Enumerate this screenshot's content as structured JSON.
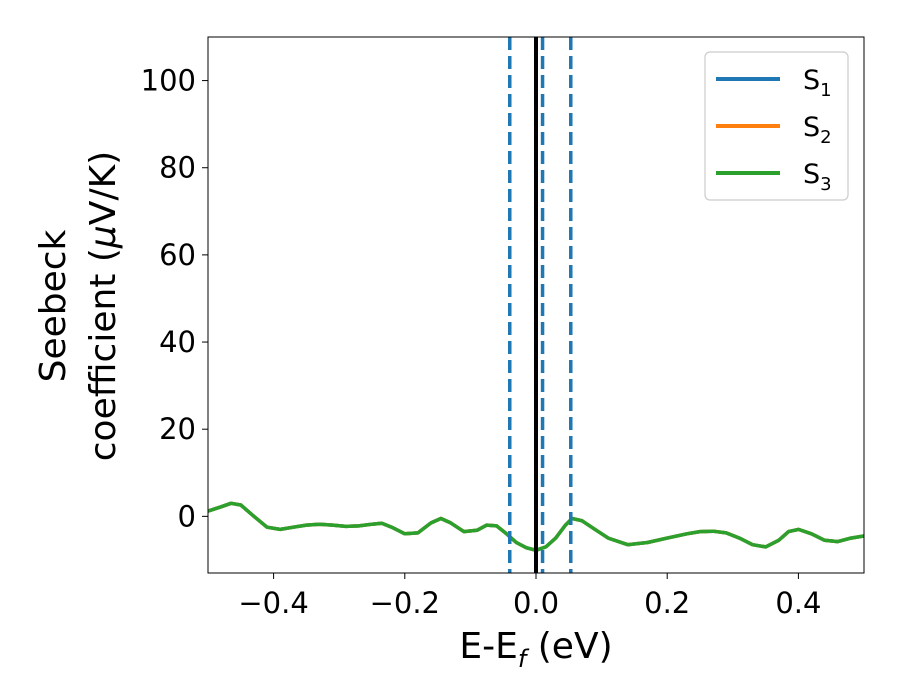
{
  "chart_data": {
    "type": "line",
    "xlabel": {
      "base": "E-E",
      "sub": "f",
      "unit": " (eV)"
    },
    "ylabel": {
      "line1": "Seebeck",
      "line2": "coefficient  (",
      "mu": "μ",
      "unit_rest": "V/K)"
    },
    "xlim": [
      -0.5,
      0.5
    ],
    "ylim": [
      -13,
      110
    ],
    "xticks": [
      -0.4,
      -0.2,
      0.0,
      0.2,
      0.4
    ],
    "xtick_labels": [
      "−0.4",
      "−0.2",
      "0.0",
      "0.2",
      "0.4"
    ],
    "yticks": [
      0,
      20,
      40,
      60,
      80,
      100
    ],
    "ytick_labels": [
      "0",
      "20",
      "40",
      "60",
      "80",
      "100"
    ],
    "legend_position": "top-right",
    "vlines": [
      {
        "x": 0.0,
        "style": "solid",
        "color": "#000000"
      },
      {
        "x": -0.04,
        "style": "dashed",
        "color": "#1f77b4"
      },
      {
        "x": 0.01,
        "style": "dashed",
        "color": "#1f77b4"
      },
      {
        "x": 0.053,
        "style": "dashed",
        "color": "#1f77b4"
      }
    ],
    "x": [
      -0.5,
      -0.48,
      -0.465,
      -0.45,
      -0.43,
      -0.41,
      -0.39,
      -0.37,
      -0.35,
      -0.33,
      -0.31,
      -0.29,
      -0.27,
      -0.25,
      -0.235,
      -0.22,
      -0.2,
      -0.18,
      -0.16,
      -0.145,
      -0.13,
      -0.11,
      -0.09,
      -0.075,
      -0.06,
      -0.045,
      -0.03,
      -0.015,
      0.0,
      0.015,
      0.03,
      0.045,
      0.055,
      0.07,
      0.09,
      0.11,
      0.14,
      0.17,
      0.2,
      0.23,
      0.25,
      0.27,
      0.29,
      0.31,
      0.33,
      0.35,
      0.37,
      0.385,
      0.4,
      0.42,
      0.44,
      0.46,
      0.48,
      0.5
    ],
    "series": [
      {
        "name": "S",
        "sub": "1",
        "color": "#1f77b4",
        "values": [
          1.2,
          2.2,
          3.0,
          2.6,
          0.0,
          -2.5,
          -3.0,
          -2.5,
          -2.0,
          -1.8,
          -2.0,
          -2.3,
          -2.2,
          -1.8,
          -1.6,
          -2.5,
          -4.0,
          -3.8,
          -1.5,
          -0.5,
          -1.5,
          -3.5,
          -3.2,
          -2.0,
          -2.2,
          -4.0,
          -6.0,
          -7.2,
          -7.8,
          -7.0,
          -5.0,
          -2.0,
          -0.5,
          -1.0,
          -3.0,
          -5.0,
          -6.5,
          -6.0,
          -5.0,
          -4.0,
          -3.5,
          -3.4,
          -3.8,
          -5.0,
          -6.5,
          -7.0,
          -5.5,
          -3.5,
          -3.0,
          -4.0,
          -5.5,
          -5.8,
          -5.0,
          -4.5
        ]
      },
      {
        "name": "S",
        "sub": "2",
        "color": "#ff7f0e",
        "values": [
          1.2,
          2.2,
          3.0,
          2.6,
          0.0,
          -2.5,
          -3.0,
          -2.5,
          -2.0,
          -1.8,
          -2.0,
          -2.3,
          -2.2,
          -1.8,
          -1.6,
          -2.5,
          -4.0,
          -3.8,
          -1.5,
          -0.5,
          -1.5,
          -3.5,
          -3.2,
          -2.0,
          -2.2,
          -4.0,
          -6.0,
          -7.2,
          -7.8,
          -7.0,
          -5.0,
          -2.0,
          -0.5,
          -1.0,
          -3.0,
          -5.0,
          -6.5,
          -6.0,
          -5.0,
          -4.0,
          -3.5,
          -3.4,
          -3.8,
          -5.0,
          -6.5,
          -7.0,
          -5.5,
          -3.5,
          -3.0,
          -4.0,
          -5.5,
          -5.8,
          -5.0,
          -4.5
        ]
      },
      {
        "name": "S",
        "sub": "3",
        "color": "#2ca02c",
        "values": [
          1.2,
          2.2,
          3.0,
          2.6,
          0.0,
          -2.5,
          -3.0,
          -2.5,
          -2.0,
          -1.8,
          -2.0,
          -2.3,
          -2.2,
          -1.8,
          -1.6,
          -2.5,
          -4.0,
          -3.8,
          -1.5,
          -0.5,
          -1.5,
          -3.5,
          -3.2,
          -2.0,
          -2.2,
          -4.0,
          -6.0,
          -7.2,
          -7.8,
          -7.0,
          -5.0,
          -2.0,
          -0.5,
          -1.0,
          -3.0,
          -5.0,
          -6.5,
          -6.0,
          -5.0,
          -4.0,
          -3.5,
          -3.4,
          -3.8,
          -5.0,
          -6.5,
          -7.0,
          -5.5,
          -3.5,
          -3.0,
          -4.0,
          -5.5,
          -5.8,
          -5.0,
          -4.5
        ]
      }
    ]
  }
}
